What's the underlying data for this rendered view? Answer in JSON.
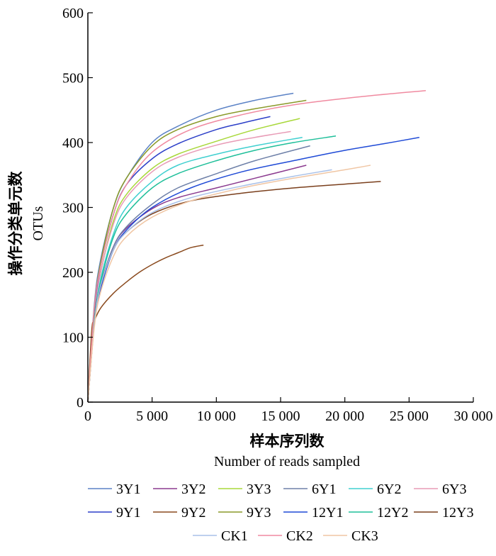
{
  "chart_data": {
    "type": "line",
    "xlabel_cn": "样本序列数",
    "xlabel_en": "Number of reads sampled",
    "ylabel_cn": "操作分类单元数",
    "ylabel_en": "OTUs",
    "xlim": [
      0,
      30000
    ],
    "ylim": [
      0,
      600
    ],
    "x_ticks": [
      0,
      5000,
      10000,
      15000,
      20000,
      25000,
      30000
    ],
    "x_tick_labels": [
      "0",
      "5 000",
      "10 000",
      "15 000",
      "20 000",
      "25 000",
      "30 000"
    ],
    "y_ticks": [
      0,
      100,
      200,
      300,
      400,
      500,
      600
    ],
    "y_tick_labels": [
      "0",
      "100",
      "200",
      "300",
      "400",
      "500",
      "600"
    ],
    "grid": false,
    "legend_position": "bottom",
    "series": [
      {
        "name": "3Y1",
        "color": "#5b82c6",
        "x": [
          0,
          500,
          1000,
          2000,
          3000,
          5000,
          7000,
          10000,
          13000,
          16000
        ],
        "y": [
          0,
          150,
          220,
          300,
          345,
          400,
          425,
          450,
          465,
          476
        ]
      },
      {
        "name": "3Y2",
        "color": "#8b3a8f",
        "x": [
          0,
          500,
          1000,
          2000,
          3000,
          5000,
          7000,
          10000,
          13000,
          17000
        ],
        "y": [
          0,
          120,
          180,
          240,
          268,
          298,
          315,
          330,
          345,
          365
        ]
      },
      {
        "name": "3Y3",
        "color": "#a8d83a",
        "x": [
          0,
          500,
          1000,
          2000,
          3000,
          5000,
          7000,
          10000,
          13000,
          16500
        ],
        "y": [
          0,
          140,
          200,
          280,
          320,
          360,
          382,
          402,
          420,
          437
        ]
      },
      {
        "name": "6Y1",
        "color": "#6e80a8",
        "x": [
          0,
          500,
          1000,
          2000,
          3000,
          5000,
          7000,
          10000,
          13000,
          17300
        ],
        "y": [
          0,
          120,
          180,
          240,
          270,
          305,
          330,
          352,
          372,
          395
        ]
      },
      {
        "name": "6Y2",
        "color": "#40d0d0",
        "x": [
          0,
          500,
          1000,
          2000,
          3000,
          5000,
          7000,
          10000,
          13000,
          16700
        ],
        "y": [
          0,
          125,
          190,
          260,
          300,
          340,
          365,
          382,
          395,
          408
        ]
      },
      {
        "name": "6Y3",
        "color": "#e89bb6",
        "x": [
          0,
          500,
          1000,
          2000,
          3000,
          5000,
          7000,
          10000,
          13000,
          15800
        ],
        "y": [
          0,
          135,
          200,
          275,
          315,
          355,
          377,
          396,
          408,
          417
        ]
      },
      {
        "name": "9Y1",
        "color": "#2c3fc8",
        "x": [
          0,
          500,
          1000,
          2000,
          3000,
          5000,
          7000,
          10000,
          12000,
          14200
        ],
        "y": [
          0,
          140,
          210,
          290,
          335,
          375,
          398,
          420,
          430,
          440
        ]
      },
      {
        "name": "9Y2",
        "color": "#8a4a1e",
        "x": [
          0,
          300,
          500,
          1000,
          2000,
          3000,
          4000,
          5000,
          6000,
          7000,
          8000,
          9000
        ],
        "y": [
          0,
          110,
          125,
          145,
          168,
          185,
          200,
          212,
          222,
          230,
          238,
          242
        ]
      },
      {
        "name": "9Y3",
        "color": "#8a9a2a",
        "x": [
          0,
          500,
          1000,
          2000,
          3000,
          5000,
          7000,
          10000,
          13000,
          17000
        ],
        "y": [
          0,
          145,
          215,
          300,
          345,
          395,
          420,
          440,
          452,
          465
        ]
      },
      {
        "name": "12Y1",
        "color": "#1f4ad6",
        "x": [
          0,
          500,
          1000,
          2000,
          3000,
          5000,
          8000,
          12000,
          16000,
          20000,
          23000,
          25800
        ],
        "y": [
          0,
          120,
          175,
          235,
          265,
          300,
          330,
          355,
          372,
          388,
          398,
          408
        ]
      },
      {
        "name": "12Y2",
        "color": "#1fbf9a",
        "x": [
          0,
          500,
          1000,
          2000,
          3000,
          5000,
          7000,
          10000,
          13000,
          16000,
          19300
        ],
        "y": [
          0,
          125,
          185,
          255,
          290,
          330,
          352,
          372,
          388,
          400,
          410
        ]
      },
      {
        "name": "12Y3",
        "color": "#7a3f1c",
        "x": [
          0,
          500,
          1000,
          2000,
          3000,
          5000,
          8000,
          12000,
          16000,
          20000,
          22800
        ],
        "y": [
          0,
          120,
          180,
          235,
          262,
          290,
          310,
          322,
          330,
          336,
          340
        ]
      },
      {
        "name": "CK1",
        "color": "#a8c0e8",
        "x": [
          0,
          500,
          1000,
          2000,
          3000,
          5000,
          8000,
          12000,
          16000,
          19000
        ],
        "y": [
          0,
          120,
          180,
          235,
          262,
          292,
          315,
          333,
          348,
          358
        ]
      },
      {
        "name": "CK2",
        "color": "#f08aa0",
        "x": [
          0,
          500,
          1000,
          2000,
          3000,
          5000,
          8000,
          12000,
          16000,
          20000,
          24000,
          26300
        ],
        "y": [
          0,
          145,
          210,
          290,
          335,
          385,
          420,
          443,
          458,
          468,
          476,
          480
        ]
      },
      {
        "name": "CK3",
        "color": "#f0c6a4",
        "x": [
          0,
          500,
          1000,
          2000,
          3000,
          5000,
          8000,
          12000,
          16000,
          20000,
          22000
        ],
        "y": [
          0,
          115,
          170,
          225,
          255,
          285,
          310,
          330,
          345,
          358,
          365
        ]
      }
    ]
  }
}
